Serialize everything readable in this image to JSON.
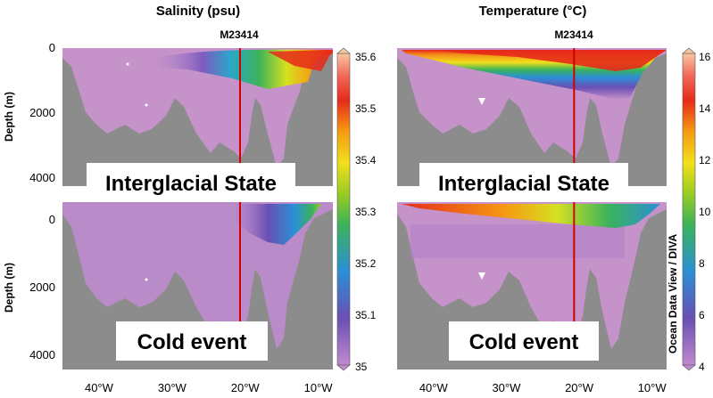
{
  "chart_data": [
    {
      "type": "heatmap",
      "panel": "top-left",
      "title": "Salinity (psu)",
      "core_label": "M23414",
      "overlay_label": "Interglacial State",
      "ylabel": "Depth (m)",
      "yticks": [
        "0",
        "2000",
        "4000"
      ],
      "ylim": [
        4500,
        0
      ],
      "xlim": [
        -45,
        -8
      ],
      "core_longitude": -20.7,
      "colorbar_ticks": [
        "35.6",
        "35.5",
        "35.4",
        "35.3",
        "35.2",
        "35.1",
        "35"
      ]
    },
    {
      "type": "heatmap",
      "panel": "top-right",
      "title": "Temperature (°C)",
      "core_label": "M23414",
      "overlay_label": "Interglacial State",
      "ylim": [
        4500,
        0
      ],
      "xlim": [
        -45,
        -8
      ],
      "core_longitude": -20.7,
      "colorbar_ticks": [
        "16",
        "14",
        "12",
        "10",
        "8",
        "6",
        "4"
      ]
    },
    {
      "type": "heatmap",
      "panel": "bottom-left",
      "overlay_label": "Cold event",
      "ylabel": "Depth (m)",
      "yticks": [
        "0",
        "2000",
        "4000"
      ],
      "xticks": [
        "40°W",
        "30°W",
        "20°W",
        "10°W"
      ],
      "ylim": [
        4500,
        0
      ],
      "xlim": [
        -45,
        -8
      ],
      "core_longitude": -20.7
    },
    {
      "type": "heatmap",
      "panel": "bottom-right",
      "overlay_label": "Cold event",
      "xticks": [
        "40°W",
        "30°W",
        "20°W",
        "10°W"
      ],
      "ylim": [
        4500,
        0
      ],
      "xlim": [
        -45,
        -8
      ],
      "core_longitude": -20.7
    }
  ],
  "side_label": "Ocean Data View / DIVA",
  "colors": {
    "seafloor": "#8c8c8c",
    "deep_water": "#c592c9",
    "core_line": "#d40000"
  }
}
